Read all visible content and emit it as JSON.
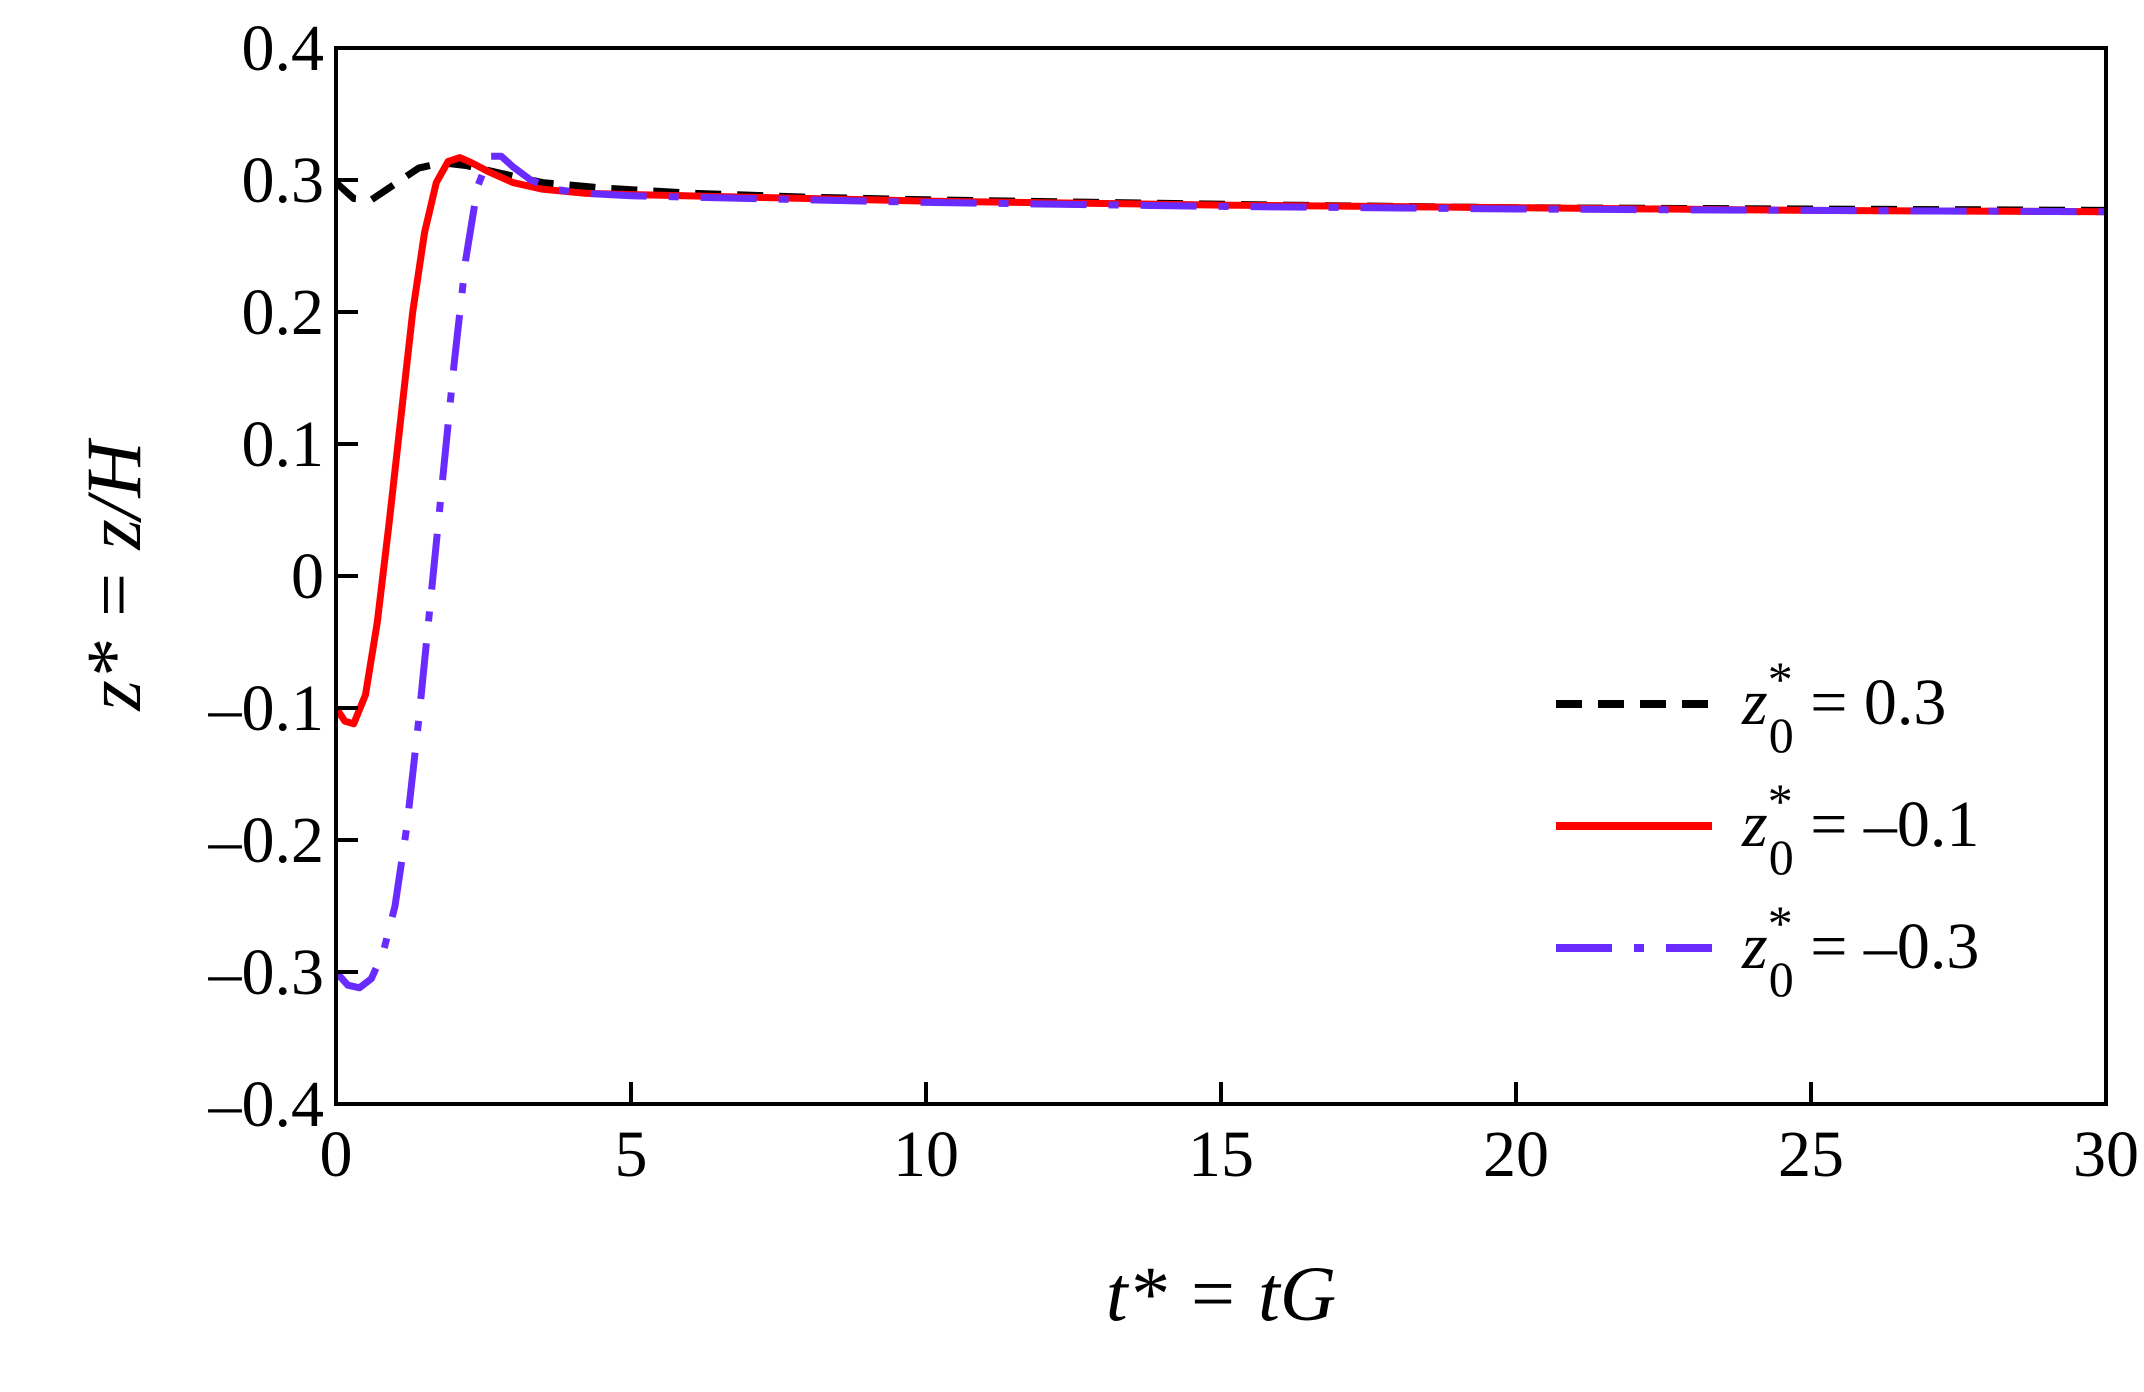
{
  "chart_data": {
    "type": "line",
    "title": "",
    "xlabel": "t* = tG",
    "ylabel": "z* = z/H",
    "xlim": [
      0,
      30
    ],
    "ylim": [
      -0.4,
      0.4
    ],
    "xticks": [
      0,
      5,
      10,
      15,
      20,
      25,
      30
    ],
    "yticks": [
      0.4,
      0.3,
      0.2,
      0.1,
      0,
      -0.1,
      -0.2,
      -0.3,
      -0.4
    ],
    "xtick_labels": [
      "0",
      "5",
      "10",
      "15",
      "20",
      "25",
      "30"
    ],
    "ytick_labels": [
      "0.4",
      "0.3",
      "0.2",
      "0.1",
      "0",
      "–0.1",
      "–0.2",
      "–0.3",
      "–0.4"
    ],
    "grid": false,
    "legend_position": "right",
    "series": [
      {
        "name": "z0* = 0.3",
        "label_lhs": "z",
        "label_sup": "*",
        "label_sub": "0",
        "label_rhs": " = 0.3",
        "color": "#000000",
        "style": "dashed",
        "x": [
          0,
          0.3,
          0.6,
          1.0,
          1.4,
          1.8,
          2.2,
          2.8,
          3.5,
          4.5,
          6,
          8,
          10,
          13,
          16,
          20,
          25,
          30
        ],
        "y": [
          0.298,
          0.286,
          0.285,
          0.297,
          0.309,
          0.313,
          0.311,
          0.305,
          0.298,
          0.294,
          0.29,
          0.287,
          0.285,
          0.283,
          0.281,
          0.279,
          0.278,
          0.277
        ]
      },
      {
        "name": "z0* = -0.1",
        "label_lhs": "z",
        "label_sup": "*",
        "label_sub": "0",
        "label_rhs": " = –0.1",
        "color": "#ff0000",
        "style": "solid",
        "x": [
          0,
          0.15,
          0.3,
          0.5,
          0.7,
          0.9,
          1.1,
          1.3,
          1.5,
          1.7,
          1.9,
          2.1,
          2.3,
          2.6,
          3.0,
          3.5,
          4.2,
          5,
          7,
          10,
          15,
          20,
          25,
          30
        ],
        "y": [
          -0.1,
          -0.11,
          -0.112,
          -0.09,
          -0.035,
          0.04,
          0.12,
          0.2,
          0.26,
          0.298,
          0.314,
          0.317,
          0.313,
          0.306,
          0.298,
          0.293,
          0.29,
          0.289,
          0.287,
          0.284,
          0.281,
          0.279,
          0.277,
          0.276
        ]
      },
      {
        "name": "z0* = -0.3",
        "label_lhs": "z",
        "label_sup": "*",
        "label_sub": "0",
        "label_rhs": " = –0.3",
        "color": "#6a2bff",
        "style": "dashdot",
        "x": [
          0,
          0.2,
          0.4,
          0.6,
          0.8,
          1.0,
          1.2,
          1.4,
          1.6,
          1.8,
          2.0,
          2.2,
          2.4,
          2.6,
          2.8,
          3.0,
          3.3,
          3.7,
          4.2,
          5,
          7,
          10,
          15,
          20,
          25,
          30
        ],
        "y": [
          -0.3,
          -0.31,
          -0.312,
          -0.305,
          -0.285,
          -0.25,
          -0.19,
          -0.11,
          -0.02,
          0.07,
          0.16,
          0.24,
          0.295,
          0.318,
          0.318,
          0.31,
          0.3,
          0.293,
          0.29,
          0.288,
          0.286,
          0.283,
          0.28,
          0.278,
          0.277,
          0.276
        ]
      }
    ]
  }
}
